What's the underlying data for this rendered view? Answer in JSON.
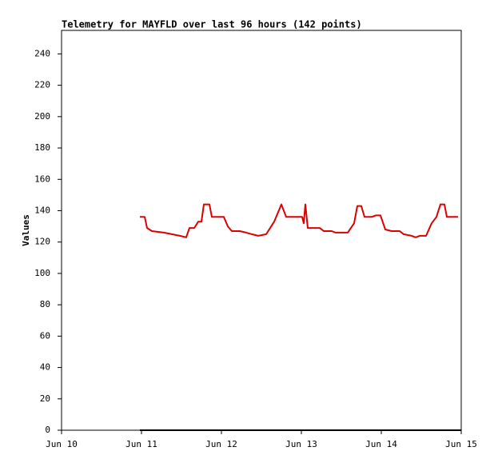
{
  "chart_data": {
    "type": "line",
    "title": "Telemetry for MAYFLD over last 96 hours (142 points)",
    "y_label": "Values",
    "series": [
      {
        "color": "#dd0000",
        "x": [
          "Jun 10 23:31",
          "Jun 11 00:58",
          "Jun 11 01:41",
          "Jun 11 03:07",
          "Jun 11 06:43",
          "Jun 11 09:07",
          "Jun 11 11:31",
          "Jun 11 13:26",
          "Jun 11 14:24",
          "Jun 11 15:50",
          "Jun 11 17:02",
          "Jun 11 18:00",
          "Jun 11 18:43",
          "Jun 11 20:24",
          "Jun 11 21:07",
          "Jun 12 00:43",
          "Jun 12 01:55",
          "Jun 12 03:07",
          "Jun 12 05:31",
          "Jun 12 07:26",
          "Jun 12 09:07",
          "Jun 12 11:02",
          "Jun 12 13:26",
          "Jun 12 15:50",
          "Jun 12 18:00",
          "Jun 12 19:26",
          "Jun 12 20:38",
          "Jun 13 00:14",
          "Jun 13 00:43",
          "Jun 13 01:12",
          "Jun 13 01:55",
          "Jun 13 05:31",
          "Jun 13 06:43",
          "Jun 13 09:07",
          "Jun 13 10:19",
          "Jun 13 13:55",
          "Jun 13 15:50",
          "Jun 13 16:48",
          "Jun 13 18:00",
          "Jun 13 18:58",
          "Jun 13 21:07",
          "Jun 13 22:19",
          "Jun 13 23:46",
          "Jun 14 01:12",
          "Jun 14 03:07",
          "Jun 14 05:31",
          "Jun 14 06:43",
          "Jun 14 09:07",
          "Jun 14 10:19",
          "Jun 14 11:31",
          "Jun 14 13:26",
          "Jun 14 15:07",
          "Jun 14 16:34",
          "Jun 14 17:46",
          "Jun 14 18:58",
          "Jun 14 19:41",
          "Jun 14 21:07",
          "Jun 14 23:02"
        ],
        "values": [
          136,
          136,
          129,
          127,
          126,
          125,
          124,
          123,
          129,
          129,
          133,
          133,
          144,
          144,
          136,
          136,
          130,
          127,
          127,
          126,
          125,
          124,
          125,
          133,
          144,
          136,
          136,
          136,
          132,
          144,
          129,
          129,
          127,
          127,
          126,
          126,
          132,
          143,
          143,
          136,
          136,
          137,
          137,
          128,
          127,
          127,
          125,
          124,
          123,
          124,
          124,
          132,
          136,
          144,
          144,
          136,
          136,
          136
        ]
      },
      {
        "color": "#000000",
        "x": [
          "Jun 10 23:31",
          "Jun 15 00:00"
        ],
        "values": [
          0,
          0
        ]
      }
    ],
    "xlim": [
      "Jun 10 00:00",
      "Jun 15 00:00"
    ],
    "xticks": [
      {
        "value": "Jun 10 00:00",
        "label": "Jun 10"
      },
      {
        "value": "Jun 11 00:00",
        "label": "Jun 11"
      },
      {
        "value": "Jun 12 00:00",
        "label": "Jun 12"
      },
      {
        "value": "Jun 13 00:00",
        "label": "Jun 13"
      },
      {
        "value": "Jun 14 00:00",
        "label": "Jun 14"
      },
      {
        "value": "Jun 15 00:00",
        "label": "Jun 15"
      }
    ],
    "ylim": [
      0,
      255
    ],
    "yticks": [
      0,
      20,
      40,
      60,
      80,
      100,
      120,
      140,
      160,
      180,
      200,
      220,
      240
    ],
    "grid": false
  }
}
